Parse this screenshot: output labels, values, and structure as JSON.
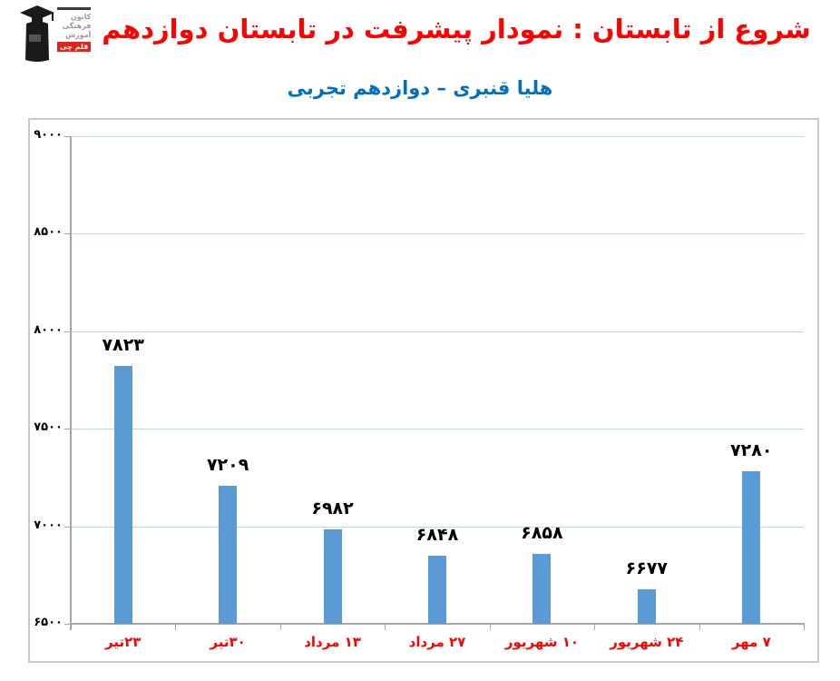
{
  "header": {
    "title": "شروع از تابستان : نمودار پیشرفت در تابستان دوازدهم",
    "title_color": "#FF0000",
    "subtitle": "هلیا قنبری – دوازدهم تجربی",
    "subtitle_color": "#0070C0",
    "logo": {
      "line1": "کانون",
      "line2": "فرهنگی",
      "line3": "آموزش",
      "badge": "قلم چی",
      "badge_color": "#E2231A"
    }
  },
  "chart_data": {
    "type": "bar",
    "title": "شروع از تابستان : نمودار پیشرفت در تابستان دوازدهم",
    "subtitle": "هلیا قنبری – دوازدهم تجربی",
    "categories": [
      "۲۳تیر",
      "۳۰تیر",
      "۱۳ مرداد",
      "۲۷ مرداد",
      "۱۰ شهریور",
      "۲۴ شهریور",
      "۷ مهر"
    ],
    "values": [
      7823,
      7209,
      6982,
      6848,
      6858,
      6677,
      7280
    ],
    "value_labels": [
      "۷۸۲۳",
      "۷۲۰۹",
      "۶۹۸۲",
      "۶۸۴۸",
      "۶۸۵۸",
      "۶۶۷۷",
      "۷۲۸۰"
    ],
    "xlabel": "",
    "ylabel": "",
    "ylim": [
      6500,
      9000
    ],
    "y_ticks": [
      6500,
      7000,
      7500,
      8000,
      8500,
      9000
    ],
    "y_tick_labels": [
      "۶۵۰۰",
      "۷۰۰۰",
      "۷۵۰۰",
      "۸۰۰۰",
      "۸۵۰۰",
      "۹۰۰۰"
    ],
    "grid": true,
    "legend": "none",
    "bar_color": "#5B9BD5",
    "gridline_color": "#BDD7EE",
    "axis_color": "#A6A6A6",
    "category_label_color": "#FF0000",
    "value_label_color": "#000000"
  }
}
